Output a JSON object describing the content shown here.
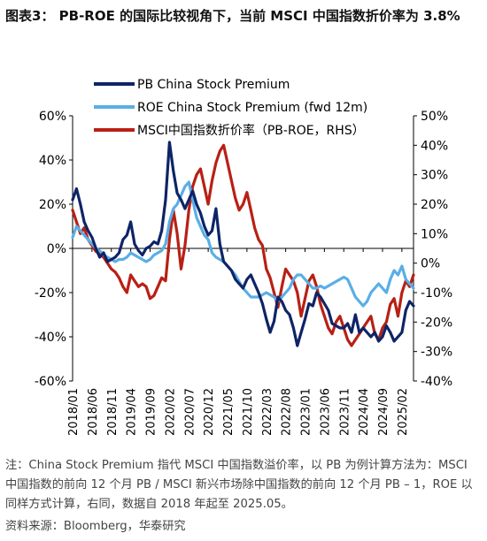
{
  "header": {
    "title": "图表3： PB-ROE 的国际比较视角下，当前 MSCI 中国指数折价率为 3.8%"
  },
  "footer": {
    "note": "注：China Stock Premium 指代 MSCI 中国指数溢价率，以 PB 为例计算方法为：MSCI 中国指数的前向 12 个月 PB / MSCI 新兴市场除中国指数的前向 12 个月 PB – 1，ROE 以同样方式计算，右同，数据自 2018 年起至 2025.05。",
    "source": "资料来源：Bloomberg，华泰研究"
  },
  "chart_data": {
    "type": "line",
    "title": "",
    "xlabel": "",
    "ylabel": "",
    "y2label": "",
    "x_tick_labels": [
      "2018/01",
      "2018/06",
      "2018/11",
      "2019/04",
      "2019/09",
      "2020/02",
      "2020/07",
      "2020/12",
      "2021/05",
      "2021/10",
      "2022/03",
      "2022/08",
      "2023/01",
      "2023/06",
      "2023/11",
      "2024/04",
      "2024/09",
      "2025/02"
    ],
    "x_range": [
      "2018-01",
      "2025-05"
    ],
    "ylim_left": [
      -60,
      60
    ],
    "ylim_right": [
      -40,
      50
    ],
    "y_ticks_left": [
      "-60%",
      "-40%",
      "-20%",
      "0%",
      "20%",
      "40%",
      "60%"
    ],
    "y_ticks_right": [
      "-40%",
      "-30%",
      "-20%",
      "-10%",
      "0%",
      "10%",
      "20%",
      "30%",
      "40%",
      "50%"
    ],
    "legend_position": "top-left",
    "grid": false,
    "series": [
      {
        "name": "PB China Stock Premium",
        "axis": "left",
        "color": "#0f2466",
        "x": [
          "2018-01",
          "2018-02",
          "2018-03",
          "2018-04",
          "2018-05",
          "2018-06",
          "2018-07",
          "2018-08",
          "2018-09",
          "2018-10",
          "2018-11",
          "2018-12",
          "2019-01",
          "2019-02",
          "2019-03",
          "2019-04",
          "2019-05",
          "2019-06",
          "2019-07",
          "2019-08",
          "2019-09",
          "2019-10",
          "2019-11",
          "2019-12",
          "2020-01",
          "2020-02",
          "2020-03",
          "2020-04",
          "2020-05",
          "2020-06",
          "2020-07",
          "2020-08",
          "2020-09",
          "2020-10",
          "2020-11",
          "2020-12",
          "2021-01",
          "2021-02",
          "2021-03",
          "2021-04",
          "2021-05",
          "2021-06",
          "2021-07",
          "2021-08",
          "2021-09",
          "2021-10",
          "2021-11",
          "2021-12",
          "2022-01",
          "2022-02",
          "2022-03",
          "2022-04",
          "2022-05",
          "2022-06",
          "2022-07",
          "2022-08",
          "2022-09",
          "2022-10",
          "2022-11",
          "2022-12",
          "2023-01",
          "2023-02",
          "2023-03",
          "2023-04",
          "2023-05",
          "2023-06",
          "2023-07",
          "2023-08",
          "2023-09",
          "2023-10",
          "2023-11",
          "2023-12",
          "2024-01",
          "2024-02",
          "2024-03",
          "2024-04",
          "2024-05",
          "2024-06",
          "2024-07",
          "2024-08",
          "2024-09",
          "2024-10",
          "2024-11",
          "2024-12",
          "2025-01",
          "2025-02",
          "2025-03",
          "2025-04",
          "2025-05"
        ],
        "values": [
          22,
          27,
          20,
          12,
          8,
          5,
          0,
          -4,
          -2,
          -6,
          -5,
          -4,
          -2,
          4,
          6,
          12,
          2,
          -1,
          -3,
          0,
          1,
          3,
          2,
          8,
          22,
          48,
          35,
          25,
          22,
          18,
          22,
          26,
          20,
          16,
          10,
          6,
          8,
          18,
          2,
          -6,
          -8,
          -10,
          -14,
          -16,
          -18,
          -14,
          -12,
          -16,
          -20,
          -25,
          -32,
          -38,
          -33,
          -22,
          -24,
          -28,
          -30,
          -36,
          -44,
          -38,
          -32,
          -25,
          -26,
          -20,
          -22,
          -25,
          -28,
          -34,
          -35,
          -36,
          -36,
          -34,
          -38,
          -30,
          -38,
          -36,
          -38,
          -40,
          -38,
          -42,
          -40,
          -35,
          -38,
          -42,
          -40,
          -38,
          -28,
          -24,
          -26
        ]
      },
      {
        "name": "ROE China Stock Premium (fwd 12m)",
        "axis": "left",
        "color": "#5aaee6",
        "x": [
          "2018-01",
          "2018-02",
          "2018-03",
          "2018-04",
          "2018-05",
          "2018-06",
          "2018-07",
          "2018-08",
          "2018-09",
          "2018-10",
          "2018-11",
          "2018-12",
          "2019-01",
          "2019-02",
          "2019-03",
          "2019-04",
          "2019-05",
          "2019-06",
          "2019-07",
          "2019-08",
          "2019-09",
          "2019-10",
          "2019-11",
          "2019-12",
          "2020-01",
          "2020-02",
          "2020-03",
          "2020-04",
          "2020-05",
          "2020-06",
          "2020-07",
          "2020-08",
          "2020-09",
          "2020-10",
          "2020-11",
          "2020-12",
          "2021-01",
          "2021-02",
          "2021-03",
          "2021-04",
          "2021-05",
          "2021-06",
          "2021-07",
          "2021-08",
          "2021-09",
          "2021-10",
          "2021-11",
          "2021-12",
          "2022-01",
          "2022-02",
          "2022-03",
          "2022-04",
          "2022-05",
          "2022-06",
          "2022-07",
          "2022-08",
          "2022-09",
          "2022-10",
          "2022-11",
          "2022-12",
          "2023-01",
          "2023-02",
          "2023-03",
          "2023-04",
          "2023-05",
          "2023-06",
          "2023-07",
          "2023-08",
          "2023-09",
          "2023-10",
          "2023-11",
          "2023-12",
          "2024-01",
          "2024-02",
          "2024-03",
          "2024-04",
          "2024-05",
          "2024-06",
          "2024-07",
          "2024-08",
          "2024-09",
          "2024-10",
          "2024-11",
          "2024-12",
          "2025-01",
          "2025-02",
          "2025-03",
          "2025-04",
          "2025-05"
        ],
        "values": [
          5,
          10,
          8,
          6,
          4,
          2,
          0,
          -1,
          -3,
          -4,
          -5,
          -6,
          -5,
          -5,
          -4,
          -2,
          -3,
          -4,
          -5,
          -6,
          -5,
          -3,
          -2,
          -1,
          2,
          12,
          18,
          20,
          24,
          28,
          30,
          22,
          14,
          10,
          6,
          4,
          -2,
          -4,
          -5,
          -6,
          -8,
          -10,
          -12,
          -15,
          -18,
          -20,
          -22,
          -22,
          -22,
          -21,
          -20,
          -21,
          -22,
          -24,
          -22,
          -20,
          -18,
          -14,
          -12,
          -12,
          -14,
          -16,
          -18,
          -18,
          -17,
          -18,
          -17,
          -16,
          -15,
          -14,
          -13,
          -14,
          -18,
          -22,
          -24,
          -26,
          -24,
          -20,
          -18,
          -16,
          -18,
          -20,
          -14,
          -10,
          -12,
          -8,
          -14,
          -16,
          -18
        ]
      },
      {
        "name": "MSCI中国指数折价率（PB-ROE，RHS）",
        "axis": "right",
        "color": "#b82015",
        "x": [
          "2018-01",
          "2018-02",
          "2018-03",
          "2018-04",
          "2018-05",
          "2018-06",
          "2018-07",
          "2018-08",
          "2018-09",
          "2018-10",
          "2018-11",
          "2018-12",
          "2019-01",
          "2019-02",
          "2019-03",
          "2019-04",
          "2019-05",
          "2019-06",
          "2019-07",
          "2019-08",
          "2019-09",
          "2019-10",
          "2019-11",
          "2019-12",
          "2020-01",
          "2020-02",
          "2020-03",
          "2020-04",
          "2020-05",
          "2020-06",
          "2020-07",
          "2020-08",
          "2020-09",
          "2020-10",
          "2020-11",
          "2020-12",
          "2021-01",
          "2021-02",
          "2021-03",
          "2021-04",
          "2021-05",
          "2021-06",
          "2021-07",
          "2021-08",
          "2021-09",
          "2021-10",
          "2021-11",
          "2021-12",
          "2022-01",
          "2022-02",
          "2022-03",
          "2022-04",
          "2022-05",
          "2022-06",
          "2022-07",
          "2022-08",
          "2022-09",
          "2022-10",
          "2022-11",
          "2022-12",
          "2023-01",
          "2023-02",
          "2023-03",
          "2023-04",
          "2023-05",
          "2023-06",
          "2023-07",
          "2023-08",
          "2023-09",
          "2023-10",
          "2023-11",
          "2023-12",
          "2024-01",
          "2024-02",
          "2024-03",
          "2024-04",
          "2024-05",
          "2024-06",
          "2024-07",
          "2024-08",
          "2024-09",
          "2024-10",
          "2024-11",
          "2024-12",
          "2025-01",
          "2025-02",
          "2025-03",
          "2025-04",
          "2025-05"
        ],
        "values": [
          18,
          14,
          10,
          12,
          8,
          6,
          4,
          3,
          2,
          0,
          -2,
          -3,
          -5,
          -8,
          -10,
          -4,
          -6,
          -8,
          -7,
          -8,
          -12,
          -11,
          -8,
          -5,
          -6,
          8,
          18,
          10,
          -2,
          6,
          18,
          26,
          30,
          32,
          26,
          20,
          28,
          34,
          38,
          40,
          34,
          28,
          22,
          18,
          20,
          24,
          18,
          12,
          8,
          6,
          -2,
          -5,
          -10,
          -15,
          -8,
          -2,
          -4,
          -6,
          -10,
          -18,
          -12,
          -6,
          -4,
          -8,
          -14,
          -18,
          -22,
          -24,
          -20,
          -18,
          -22,
          -26,
          -28,
          -26,
          -24,
          -22,
          -20,
          -18,
          -24,
          -26,
          -22,
          -20,
          -14,
          -12,
          -18,
          -10,
          -6,
          -8,
          -4
        ]
      }
    ]
  }
}
